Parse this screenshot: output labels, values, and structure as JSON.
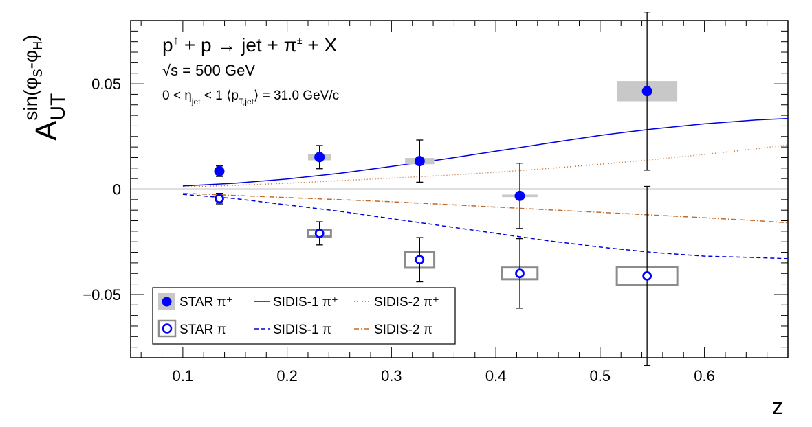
{
  "chart_data": {
    "type": "scatter",
    "title_lines": [
      "p↑ + p → jet + π± + X",
      "√s = 500 GeV",
      "0 < η_jet < 1 ⟨p_T,jet⟩ = 31.0 GeV/c"
    ],
    "xlabel": "z",
    "ylabel": "A_UT^sin(φS-φH)",
    "xlim": [
      0.05,
      0.68
    ],
    "ylim": [
      -0.08,
      0.08
    ],
    "x_ticks": [
      "0.1",
      "0.2",
      "0.3",
      "0.4",
      "0.5",
      "0.6"
    ],
    "x_tick_values": [
      0.1,
      0.2,
      0.3,
      0.4,
      0.5,
      0.6
    ],
    "y_ticks": [
      "−0.05",
      "0",
      "0.05"
    ],
    "y_tick_values": [
      -0.05,
      0,
      0.05
    ],
    "zero_line": true,
    "grid": false,
    "legend_position": "bottom-left",
    "legend": [
      [
        "STAR π⁺",
        "SIDIS-1 π⁺",
        "SIDIS-2 π⁺"
      ],
      [
        "STAR π⁻",
        "SIDIS-1 π⁻",
        "SIDIS-2 π⁻"
      ]
    ],
    "series": [
      {
        "name": "STAR π⁺",
        "marker": "filled-circle",
        "color": "#0000ff",
        "sys_color": "#c8c8c8",
        "points": [
          {
            "x": 0.135,
            "y": 0.0085,
            "err": 0.0025,
            "sys_dx": 0.0,
            "sys_dy": 0.0
          },
          {
            "x": 0.231,
            "y": 0.0152,
            "err": 0.0055,
            "sys_dx": 0.011,
            "sys_dy": 0.0015
          },
          {
            "x": 0.327,
            "y": 0.0133,
            "err": 0.01,
            "sys_dx": 0.014,
            "sys_dy": 0.0015
          },
          {
            "x": 0.423,
            "y": -0.0032,
            "err": 0.0155,
            "sys_dx": 0.017,
            "sys_dy": 0.0006
          },
          {
            "x": 0.545,
            "y": 0.0465,
            "err": 0.0375,
            "sys_dx": 0.029,
            "sys_dy": 0.0048
          }
        ]
      },
      {
        "name": "STAR π⁻",
        "marker": "open-circle",
        "color": "#0000ff",
        "sys_color": "#8c8c8c",
        "points": [
          {
            "x": 0.135,
            "y": -0.0045,
            "err": 0.0025,
            "sys_dx": 0.0,
            "sys_dy": 0.0
          },
          {
            "x": 0.231,
            "y": -0.021,
            "err": 0.0055,
            "sys_dx": 0.011,
            "sys_dy": 0.0015
          },
          {
            "x": 0.327,
            "y": -0.0335,
            "err": 0.0105,
            "sys_dx": 0.014,
            "sys_dy": 0.0038
          },
          {
            "x": 0.423,
            "y": -0.04,
            "err": 0.0165,
            "sys_dx": 0.017,
            "sys_dy": 0.0028
          },
          {
            "x": 0.545,
            "y": -0.0412,
            "err": 0.0425,
            "sys_dx": 0.029,
            "sys_dy": 0.0042
          }
        ]
      }
    ],
    "curves": [
      {
        "name": "SIDIS-1 π⁺",
        "style": "solid",
        "color": "#0000dd",
        "x": [
          0.1,
          0.15,
          0.2,
          0.25,
          0.3,
          0.35,
          0.4,
          0.45,
          0.5,
          0.55,
          0.6,
          0.65,
          0.68
        ],
        "y": [
          0.0015,
          0.0028,
          0.0048,
          0.0075,
          0.0108,
          0.0142,
          0.018,
          0.0218,
          0.0255,
          0.0285,
          0.031,
          0.0328,
          0.0335
        ]
      },
      {
        "name": "SIDIS-2 π⁺",
        "style": "dotted",
        "color": "#c06a2b",
        "x": [
          0.1,
          0.15,
          0.2,
          0.25,
          0.3,
          0.35,
          0.4,
          0.45,
          0.5,
          0.55,
          0.6,
          0.65,
          0.68
        ],
        "y": [
          0.001,
          0.0018,
          0.0028,
          0.004,
          0.0052,
          0.0065,
          0.008,
          0.0098,
          0.0118,
          0.014,
          0.0165,
          0.0192,
          0.021
        ]
      },
      {
        "name": "SIDIS-1 π⁻",
        "style": "dashed",
        "color": "#0000dd",
        "x": [
          0.1,
          0.15,
          0.2,
          0.25,
          0.3,
          0.35,
          0.4,
          0.45,
          0.5,
          0.55,
          0.6,
          0.65,
          0.68
        ],
        "y": [
          -0.0025,
          -0.0045,
          -0.0075,
          -0.0105,
          -0.014,
          -0.0175,
          -0.021,
          -0.0245,
          -0.0275,
          -0.03,
          -0.0318,
          -0.0325,
          -0.033
        ]
      },
      {
        "name": "SIDIS-2 π⁻",
        "style": "dashdot",
        "color": "#c06a2b",
        "x": [
          0.1,
          0.15,
          0.2,
          0.25,
          0.3,
          0.35,
          0.4,
          0.45,
          0.5,
          0.55,
          0.6,
          0.65,
          0.68
        ],
        "y": [
          -0.002,
          -0.003,
          -0.004,
          -0.005,
          -0.006,
          -0.0072,
          -0.0085,
          -0.0098,
          -0.011,
          -0.0123,
          -0.0136,
          -0.015,
          -0.016
        ]
      }
    ]
  }
}
